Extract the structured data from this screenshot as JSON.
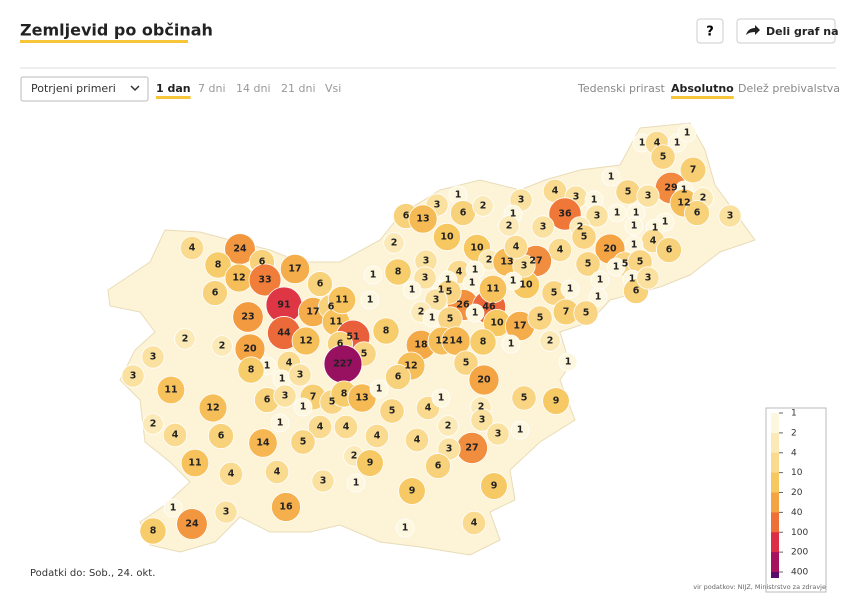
{
  "header": {
    "title": "Zemljevid po občinah",
    "help": "?",
    "share": "Deli graf na"
  },
  "controls": {
    "dropdown": "Potrjeni primeri",
    "periods": [
      "1 dan",
      "7 dni",
      "14 dni",
      "21 dni",
      "Vsi"
    ],
    "active_period": 0,
    "modes": [
      "Tedenski prirast",
      "Absolutno",
      "Delež prebivalstva"
    ],
    "active_mode": 1
  },
  "map": {
    "legend": {
      "ticks": [
        1,
        2,
        4,
        10,
        20,
        40,
        100,
        200,
        400
      ],
      "colors": [
        "#fdf7e0",
        "#fbeab7",
        "#f9da8e",
        "#f7c760",
        "#f4a443",
        "#ee7037",
        "#dc2f46",
        "#a6125e",
        "#5c0a6e"
      ]
    },
    "values": [
      1,
      4,
      1,
      1,
      5,
      7,
      1,
      29,
      5,
      3,
      1,
      12,
      2,
      6,
      3,
      4,
      3,
      1,
      36,
      3,
      1,
      1,
      1,
      2,
      1,
      1,
      4,
      5,
      20,
      1,
      6,
      4,
      27,
      5,
      5,
      5,
      1,
      1,
      6,
      3,
      1,
      1,
      5,
      1,
      10,
      1,
      3,
      6,
      13,
      6,
      2,
      3,
      3,
      1,
      2,
      10,
      2,
      10,
      2,
      13,
      3,
      4,
      1,
      3,
      8,
      3,
      4,
      1,
      1,
      1,
      1,
      1,
      26,
      46,
      11,
      5,
      3,
      2,
      1,
      5,
      1,
      10,
      17,
      5,
      7,
      5,
      1,
      1,
      4,
      24,
      8,
      6,
      17,
      12,
      33,
      6,
      6,
      91,
      17,
      6,
      23,
      11,
      44,
      51,
      12,
      6,
      5,
      20,
      2,
      2,
      8,
      3,
      3,
      227,
      18,
      12,
      14,
      8,
      1,
      2,
      5,
      1,
      11,
      4,
      1,
      8,
      7,
      1,
      3,
      12,
      6,
      20,
      11,
      12,
      6,
      3,
      1,
      5,
      8,
      13,
      5,
      4,
      1,
      1,
      5,
      9,
      2,
      4,
      6,
      14,
      1,
      4,
      5,
      4,
      4,
      4,
      2,
      2,
      3,
      3,
      1,
      27,
      3,
      2,
      9,
      6,
      11,
      4,
      4,
      3,
      1,
      9,
      9,
      16,
      3,
      1,
      24,
      8,
      4,
      1
    ]
  },
  "footer": {
    "date": "Podatki do: Sob., 24. okt.",
    "source": "vir podatkov: NIJZ, Ministrstvo za zdravje"
  }
}
